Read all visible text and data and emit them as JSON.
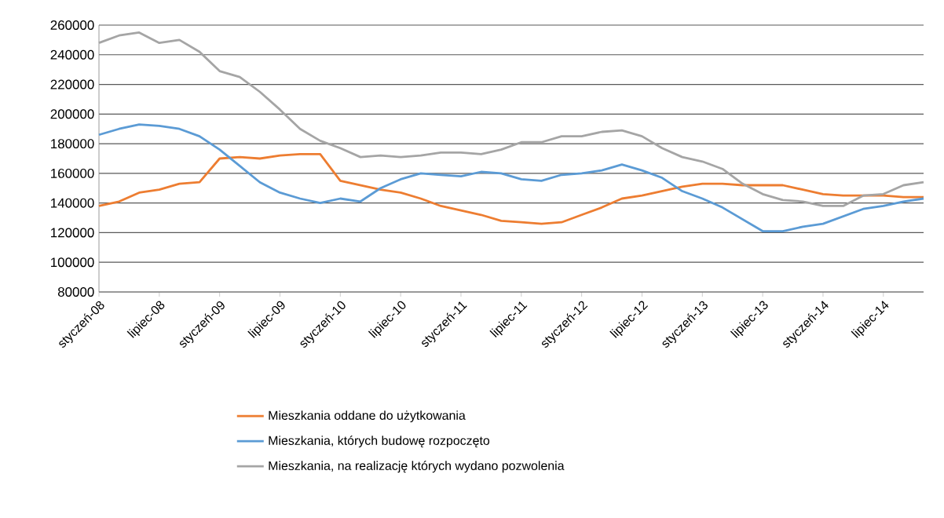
{
  "chart_data": {
    "type": "line",
    "categories": [
      "styczeń-08",
      null,
      null,
      "lipiec-08",
      null,
      null,
      "styczeń-09",
      null,
      null,
      "lipiec-09",
      null,
      null,
      "styczeń-10",
      null,
      null,
      "lipiec-10",
      null,
      null,
      "styczeń-11",
      null,
      null,
      "lipiec-11",
      null,
      null,
      "styczeń-12",
      null,
      null,
      "lipiec-12",
      null,
      null,
      "styczeń-13",
      null,
      null,
      "lipiec-13",
      null,
      null,
      "styczeń-14",
      null,
      null,
      "lipiec-14",
      null,
      null
    ],
    "series": [
      {
        "name": "Mieszkania oddane do użytkowania",
        "color": "#ed7d31",
        "values": [
          138000,
          141000,
          147000,
          149000,
          153000,
          154000,
          170000,
          171000,
          170000,
          172000,
          173000,
          173000,
          155000,
          152000,
          149000,
          147000,
          143000,
          138000,
          135000,
          132000,
          128000,
          127000,
          126000,
          127000,
          132000,
          137000,
          143000,
          145000,
          148000,
          151000,
          153000,
          153000,
          152000,
          152000,
          152000,
          149000,
          146000,
          145000,
          145000,
          145000,
          144000,
          144000
        ]
      },
      {
        "name": "Mieszkania, których budowę rozpoczęto",
        "color": "#5b9bd5",
        "values": [
          186000,
          190000,
          193000,
          192000,
          190000,
          185000,
          176000,
          165000,
          154000,
          147000,
          143000,
          140000,
          143000,
          141000,
          150000,
          156000,
          160000,
          159000,
          158000,
          161000,
          160000,
          156000,
          155000,
          159000,
          160000,
          162000,
          166000,
          162000,
          157000,
          148000,
          143000,
          137000,
          129000,
          121000,
          121000,
          124000,
          126000,
          131000,
          136000,
          138000,
          141000,
          143000
        ]
      },
      {
        "name": "Mieszkania, na realizację których wydano pozwolenia",
        "color": "#a5a5a5",
        "values": [
          248000,
          253000,
          255000,
          248000,
          250000,
          242000,
          229000,
          225000,
          215000,
          203000,
          190000,
          182000,
          177000,
          171000,
          172000,
          171000,
          172000,
          174000,
          174000,
          173000,
          176000,
          181000,
          181000,
          185000,
          185000,
          188000,
          189000,
          185000,
          177000,
          171000,
          168000,
          163000,
          153000,
          146000,
          142000,
          141000,
          138000,
          138000,
          145000,
          146000,
          152000,
          154000
        ]
      }
    ],
    "ylim": [
      80000,
      260000
    ],
    "yticks": [
      80000,
      100000,
      120000,
      140000,
      160000,
      180000,
      200000,
      220000,
      240000,
      260000
    ],
    "grid": "y",
    "legend": "bottom"
  }
}
